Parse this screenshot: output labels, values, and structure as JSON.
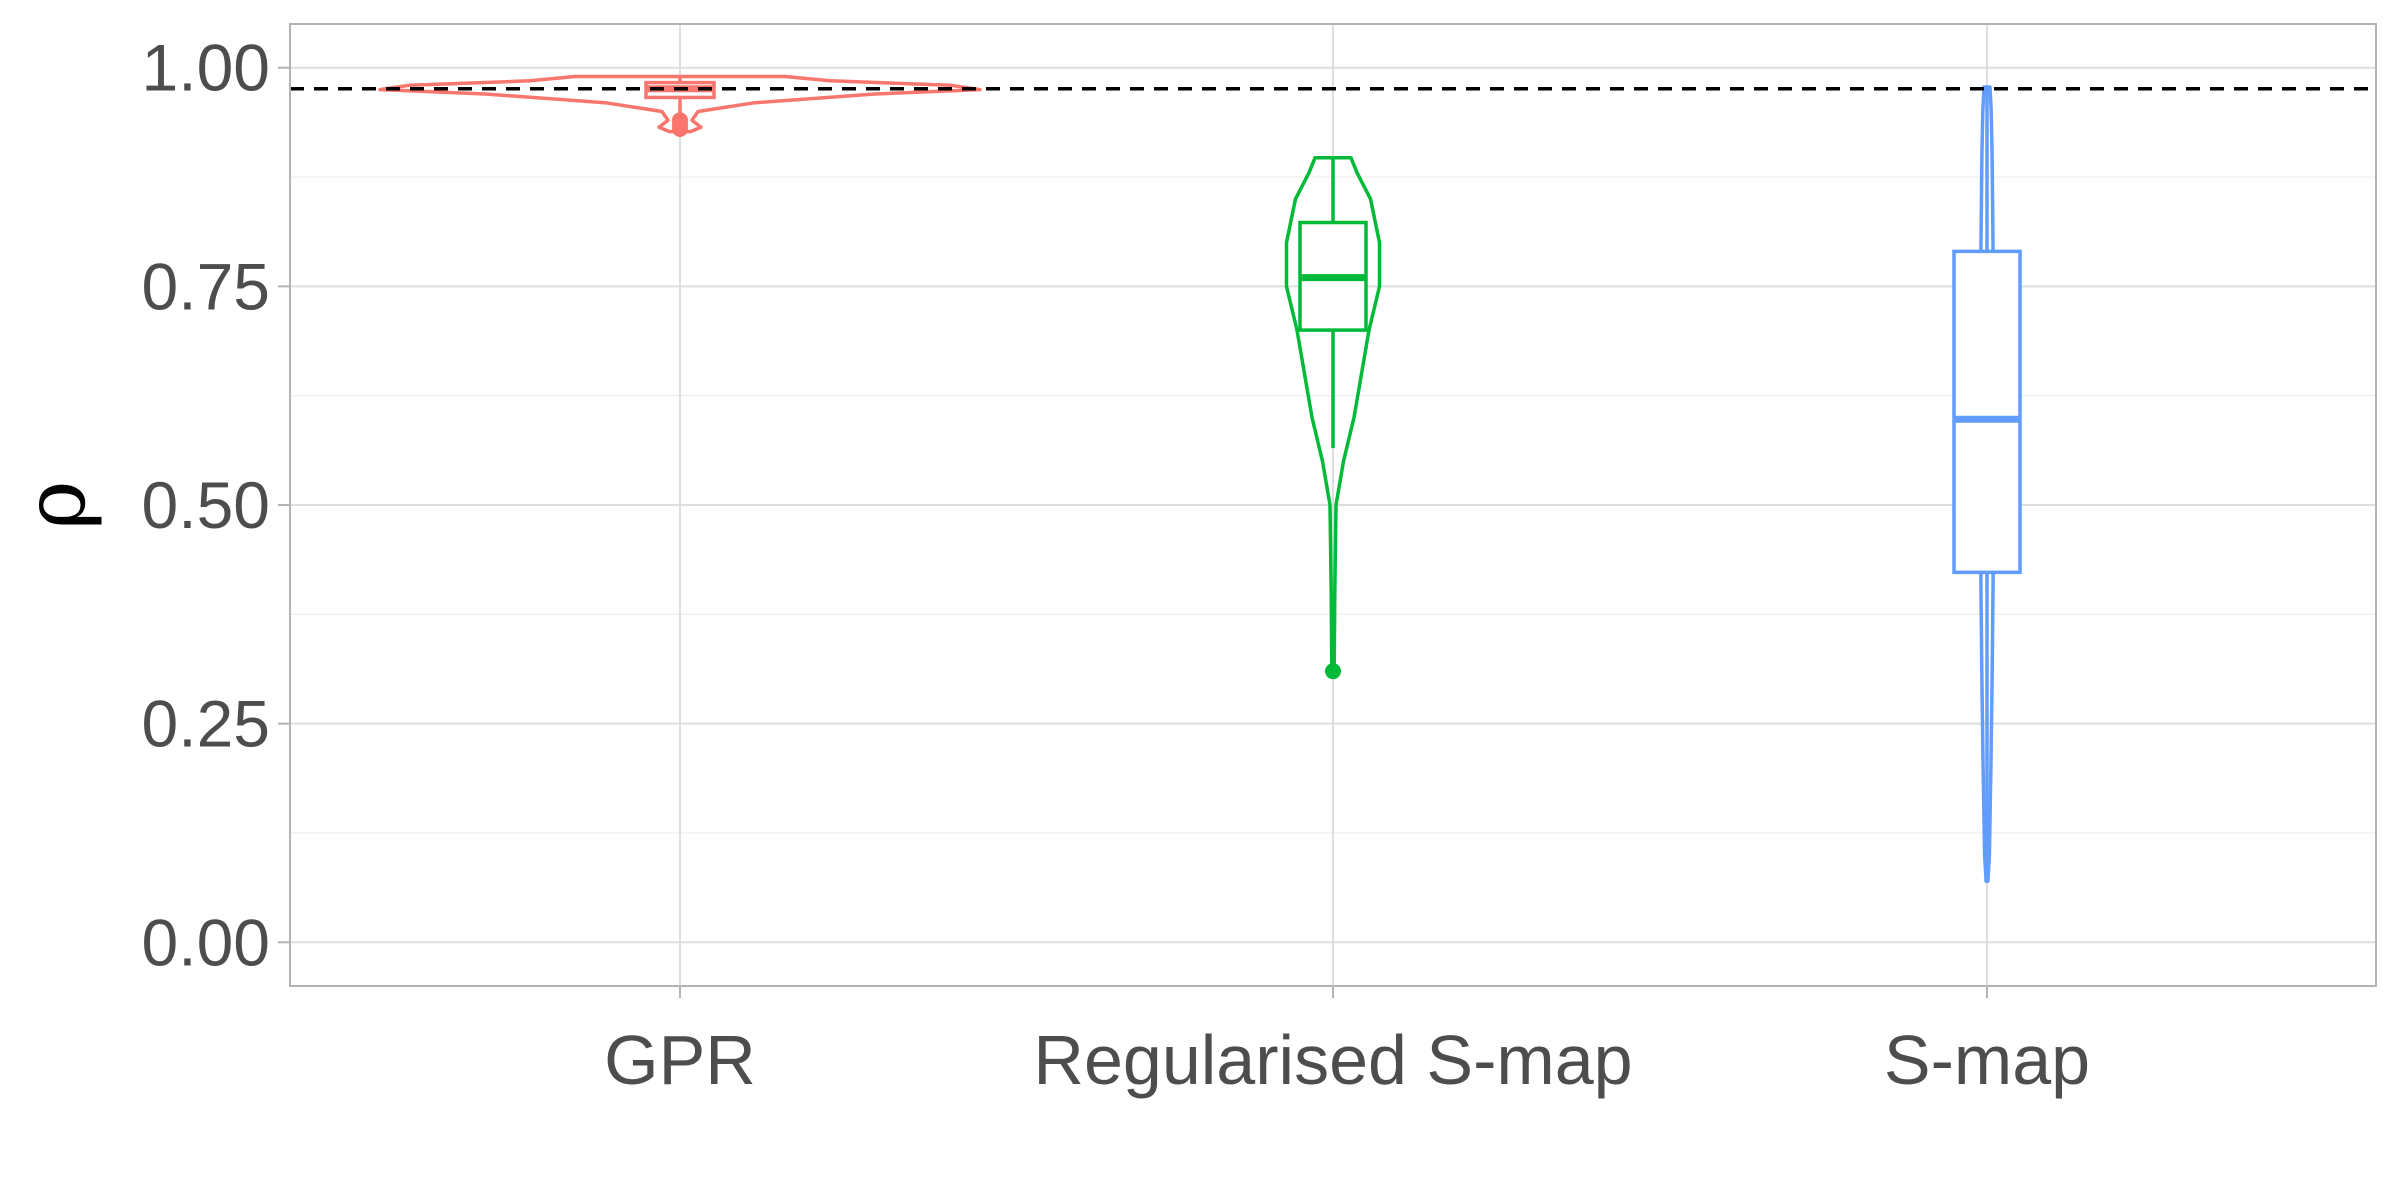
{
  "chart_data": {
    "type": "violin",
    "ylabel": "ρ",
    "xlabel": "",
    "categories": [
      "GPR",
      "Regularised S-map",
      "S-map"
    ],
    "ylim": [
      -0.05,
      1.05
    ],
    "yticks": [
      0.0,
      0.25,
      0.5,
      0.75,
      1.0
    ],
    "ytick_labels": [
      "0.00",
      "0.25",
      "0.50",
      "0.75",
      "1.00"
    ],
    "minor_grid": [
      0.125,
      0.375,
      0.625,
      0.875
    ],
    "reference_line": {
      "y": 0.976,
      "style": "dashed",
      "color": "#000000"
    },
    "grid": true,
    "legend": "none",
    "series": [
      {
        "category": "GPR",
        "color": "#F8766D",
        "box": {
          "q1": 0.966,
          "median": 0.976,
          "q3": 0.983,
          "whisker_low": 0.944,
          "whisker_high": 0.988
        },
        "outliers": [
          0.94,
          0.935,
          0.93
        ],
        "violin_profile": [
          [
            0.927,
            0.035
          ],
          [
            0.932,
            0.07
          ],
          [
            0.94,
            0.04
          ],
          [
            0.95,
            0.06
          ],
          [
            0.96,
            0.25
          ],
          [
            0.97,
            0.65
          ],
          [
            0.975,
            1.0
          ],
          [
            0.98,
            0.9
          ],
          [
            0.985,
            0.5
          ],
          [
            0.99,
            0.35
          ]
        ]
      },
      {
        "category": "Regularised S-map",
        "color": "#00BA38",
        "box": {
          "q1": 0.7,
          "median": 0.76,
          "q3": 0.823,
          "whisker_low": 0.565,
          "whisker_high": 0.897
        },
        "outliers": [
          0.31
        ],
        "violin_profile": [
          [
            0.31,
            0.004
          ],
          [
            0.4,
            0.006
          ],
          [
            0.5,
            0.01
          ],
          [
            0.55,
            0.035
          ],
          [
            0.6,
            0.07
          ],
          [
            0.65,
            0.095
          ],
          [
            0.7,
            0.12
          ],
          [
            0.75,
            0.155
          ],
          [
            0.8,
            0.155
          ],
          [
            0.85,
            0.125
          ],
          [
            0.88,
            0.08
          ],
          [
            0.897,
            0.06
          ]
        ]
      },
      {
        "category": "S-map",
        "color": "#619CFF",
        "box": {
          "q1": 0.423,
          "median": 0.598,
          "q3": 0.79,
          "whisker_low": 0.07,
          "whisker_high": 0.978
        },
        "outliers": [],
        "violin_profile": [
          [
            0.07,
            0.003
          ],
          [
            0.1,
            0.008
          ],
          [
            0.2,
            0.013
          ],
          [
            0.3,
            0.017
          ],
          [
            0.4,
            0.02
          ],
          [
            0.5,
            0.022
          ],
          [
            0.6,
            0.022
          ],
          [
            0.7,
            0.022
          ],
          [
            0.8,
            0.02
          ],
          [
            0.9,
            0.017
          ],
          [
            0.95,
            0.014
          ],
          [
            0.978,
            0.01
          ]
        ]
      }
    ]
  }
}
